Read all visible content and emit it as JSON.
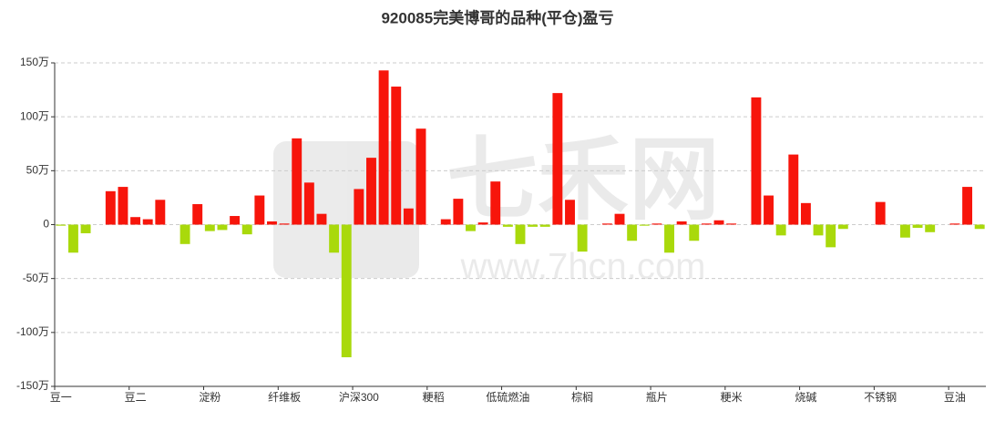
{
  "chart_data": {
    "type": "bar",
    "title": "920085完美博哥的品种(平仓)盈亏",
    "watermark": [
      "七禾网",
      "www.7hcn.com"
    ],
    "categories": [
      "豆一",
      null,
      null,
      null,
      null,
      null,
      "豆二",
      null,
      null,
      null,
      null,
      null,
      "淀粉",
      null,
      null,
      null,
      null,
      null,
      "纤维板",
      null,
      null,
      null,
      null,
      null,
      "沪深300",
      null,
      null,
      null,
      null,
      null,
      "粳稻",
      null,
      null,
      null,
      null,
      null,
      "低硫燃油",
      null,
      null,
      null,
      null,
      null,
      "棕榈",
      null,
      null,
      null,
      null,
      null,
      "瓶片",
      null,
      null,
      null,
      null,
      null,
      "粳米",
      null,
      null,
      null,
      null,
      null,
      "烧碱",
      null,
      null,
      null,
      null,
      null,
      "不锈钢",
      null,
      null,
      null,
      null,
      null,
      "豆油",
      null,
      null
    ],
    "values": [
      -1,
      -26,
      -8,
      0,
      31,
      35,
      7,
      5,
      23,
      0,
      -18,
      19,
      -6,
      -5,
      8,
      -9,
      27,
      3,
      1,
      80,
      39,
      10,
      -26,
      -123,
      33,
      62,
      143,
      128,
      15,
      89,
      0,
      5,
      24,
      -6,
      2,
      40,
      -2,
      -18,
      -2,
      -2,
      122,
      23,
      -25,
      0,
      1,
      10,
      -15,
      -1,
      1,
      -26,
      3,
      -15,
      1,
      4,
      1,
      0,
      118,
      27,
      -10,
      65,
      20,
      -10,
      -21,
      -4,
      0,
      0,
      21,
      0,
      -12,
      -3,
      -7,
      0,
      1,
      35,
      -4
    ],
    "positive_color": "#f7150b",
    "negative_color": "#a9d90b",
    "ylim": [
      -150,
      150
    ],
    "yticks": [
      {
        "value": -150,
        "label": "-150万"
      },
      {
        "value": -100,
        "label": "-100万"
      },
      {
        "value": -50,
        "label": "-50万"
      },
      0,
      {
        "value": 50,
        "label": "50万"
      },
      {
        "value": 100,
        "label": "100万"
      },
      {
        "value": 150,
        "label": "150万"
      }
    ],
    "grid": true
  }
}
